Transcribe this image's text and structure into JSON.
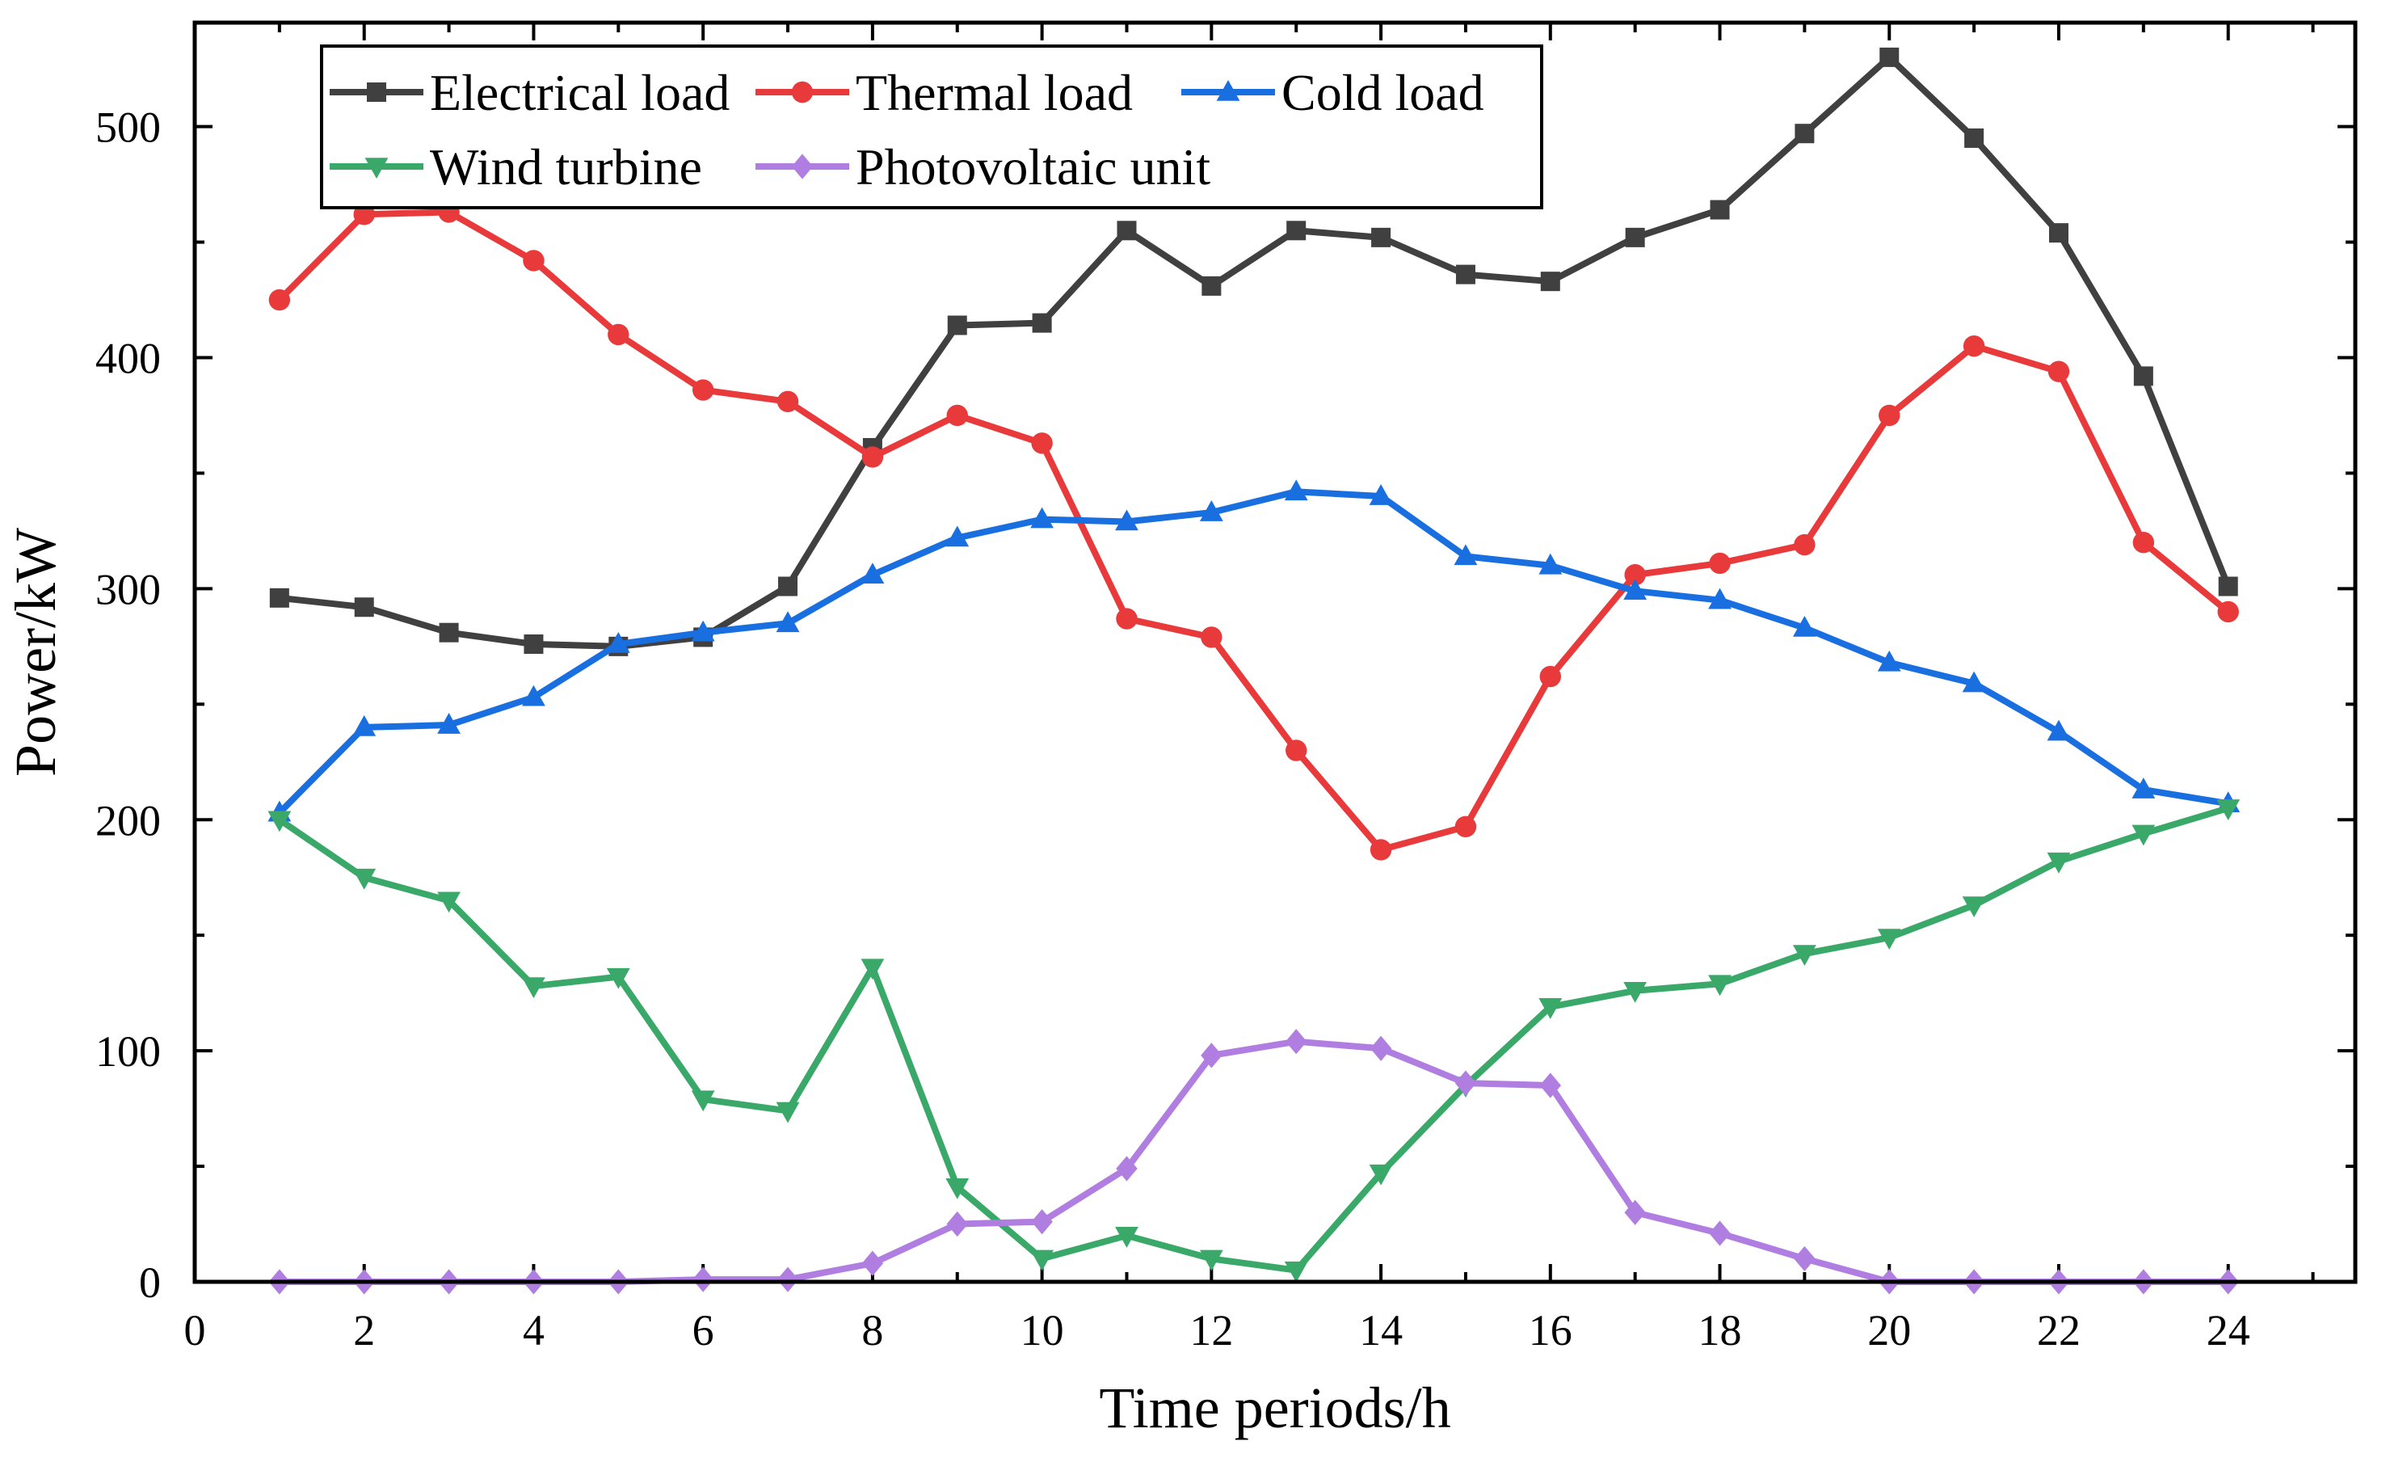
{
  "chart_data": {
    "type": "line",
    "title": "",
    "xlabel": "Time periods/h",
    "ylabel": "Power/kW",
    "xlim": [
      0,
      25.5
    ],
    "ylim": [
      0,
      545
    ],
    "xticks": [
      0,
      2,
      4,
      6,
      8,
      10,
      12,
      14,
      16,
      18,
      20,
      22,
      24
    ],
    "yticks": [
      0,
      100,
      200,
      300,
      400,
      500
    ],
    "grid": false,
    "legend_position": "top-left",
    "x": [
      1,
      2,
      3,
      4,
      5,
      6,
      7,
      8,
      9,
      10,
      11,
      12,
      13,
      14,
      15,
      16,
      17,
      18,
      19,
      20,
      21,
      22,
      23,
      24
    ],
    "series": [
      {
        "name": "Electrical load",
        "color": "#404040",
        "marker": "square",
        "values": [
          296,
          292,
          281,
          276,
          275,
          279,
          301,
          361,
          414,
          415,
          455,
          431,
          455,
          452,
          436,
          433,
          452,
          464,
          497,
          530,
          495,
          454,
          392,
          301
        ]
      },
      {
        "name": "Thermal load",
        "color": "#e8393b",
        "marker": "circle",
        "values": [
          425,
          462,
          463,
          442,
          410,
          386,
          381,
          357,
          375,
          363,
          287,
          279,
          230,
          187,
          197,
          262,
          306,
          311,
          319,
          375,
          405,
          394,
          320,
          290
        ]
      },
      {
        "name": "Cold load",
        "color": "#1a6fe0",
        "marker": "triangle-up",
        "values": [
          203,
          240,
          241,
          253,
          276,
          281,
          285,
          306,
          322,
          330,
          329,
          333,
          342,
          340,
          314,
          310,
          299,
          295,
          283,
          268,
          259,
          238,
          213,
          207
        ]
      },
      {
        "name": "Wind turbine",
        "color": "#3aa868",
        "marker": "triangle-down",
        "values": [
          200,
          175,
          165,
          128,
          132,
          79,
          74,
          136,
          41,
          10,
          20,
          10,
          5,
          47,
          85,
          119,
          126,
          129,
          142,
          149,
          163,
          182,
          194,
          205
        ]
      },
      {
        "name": "Photovoltaic unit",
        "color": "#b07ee0",
        "marker": "diamond",
        "values": [
          0,
          0,
          0,
          0,
          0,
          1,
          1,
          8,
          25,
          26,
          49,
          98,
          104,
          101,
          86,
          85,
          30,
          21,
          10,
          0,
          0,
          0,
          0,
          0
        ]
      }
    ]
  }
}
